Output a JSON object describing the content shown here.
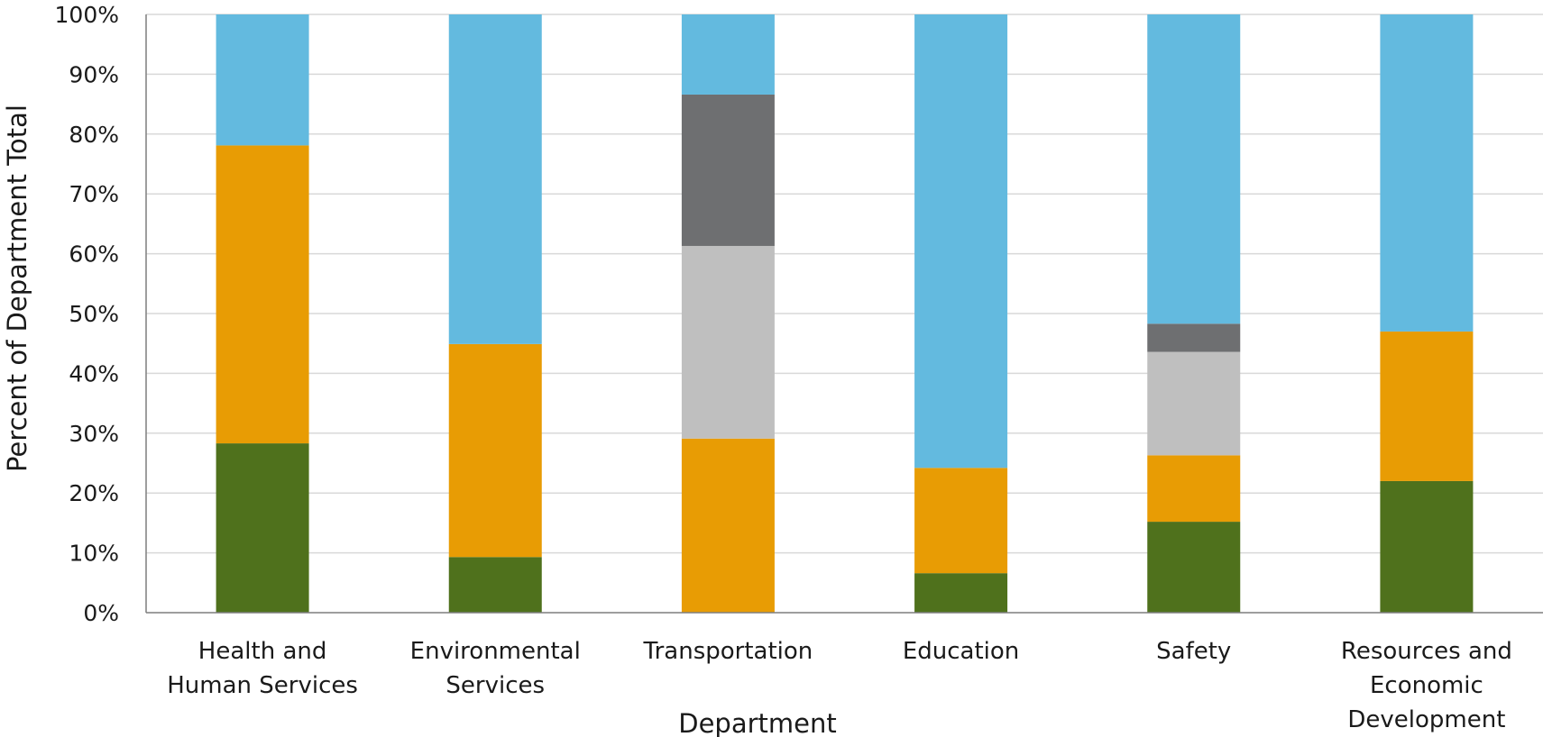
{
  "chart_data": {
    "type": "bar",
    "stacked": true,
    "xlabel": "Department",
    "ylabel": "Percent of Department Total",
    "ylim": [
      0,
      100
    ],
    "y_ticks": [
      "0%",
      "10%",
      "20%",
      "30%",
      "40%",
      "50%",
      "60%",
      "70%",
      "80%",
      "90%",
      "100%"
    ],
    "grid": true,
    "categories": [
      [
        "Health and",
        "Human Services"
      ],
      [
        "Environmental",
        "Services"
      ],
      [
        "Transportation"
      ],
      [
        "Education"
      ],
      [
        "Safety"
      ],
      [
        "Resources and",
        "Economic",
        "Development"
      ]
    ],
    "series": [
      {
        "color": "#4f711c",
        "values": [
          28.3,
          9.3,
          0,
          6.6,
          15.2,
          22.0
        ]
      },
      {
        "color": "#e89c04",
        "values": [
          49.8,
          35.6,
          29.1,
          17.6,
          11.1,
          25.0
        ]
      },
      {
        "color": "#bfbfbf",
        "values": [
          0,
          0,
          32.2,
          0,
          17.3,
          0
        ]
      },
      {
        "color": "#6e6f71",
        "values": [
          0,
          0,
          25.3,
          0,
          4.7,
          0
        ]
      },
      {
        "color": "#63badf",
        "values": [
          21.9,
          55.1,
          13.4,
          75.8,
          51.7,
          53.0
        ]
      }
    ]
  }
}
